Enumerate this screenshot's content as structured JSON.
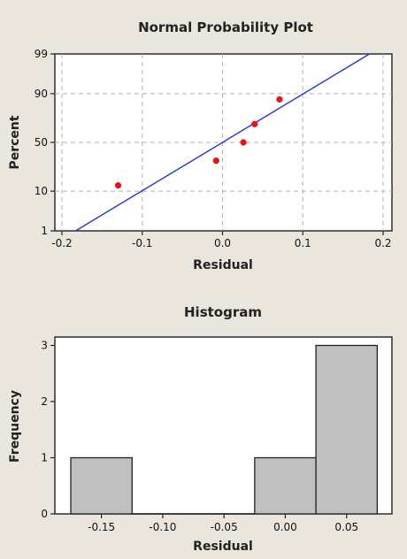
{
  "chart_data": [
    {
      "type": "scatter",
      "title": "Normal Probability Plot",
      "xlabel": "Residual",
      "ylabel": "Percent",
      "x_ticks": [
        "-0.2",
        "-0.1",
        "0.0",
        "0.1",
        "0.2"
      ],
      "y_ticks": [
        "1",
        "10",
        "50",
        "90",
        "99"
      ],
      "xlim": [
        -0.2,
        0.2
      ],
      "ylim_percent": [
        1,
        99
      ],
      "y_scale": "normal-probability",
      "grid": true,
      "fit_line": {
        "x": [
          -0.183,
          0.183
        ],
        "percent": [
          1,
          99
        ],
        "color": "#2233dd"
      },
      "series": [
        {
          "color": "#ee1111",
          "points": [
            {
              "x": -0.13,
              "percent": 12.9
            },
            {
              "x": -0.008,
              "percent": 31.5
            },
            {
              "x": 0.026,
              "percent": 50.0
            },
            {
              "x": 0.04,
              "percent": 68.5
            },
            {
              "x": 0.071,
              "percent": 87.1
            }
          ]
        }
      ]
    },
    {
      "type": "bar",
      "title": "Histogram",
      "xlabel": "Residual",
      "ylabel": "Frequency",
      "x_ticks": [
        "-0.15",
        "-0.10",
        "-0.05",
        "0.00",
        "0.05"
      ],
      "y_ticks": [
        "0",
        "1",
        "2",
        "3"
      ],
      "xlim": [
        -0.188,
        0.087
      ],
      "ylim": [
        0,
        3.15
      ],
      "bin_width": 0.05,
      "bar_color": "#c0c0c0",
      "bins": [
        {
          "center": -0.15,
          "value": 1
        },
        {
          "center": -0.1,
          "value": 0
        },
        {
          "center": -0.05,
          "value": 0
        },
        {
          "center": 0.0,
          "value": 1
        },
        {
          "center": 0.05,
          "value": 3
        }
      ]
    }
  ]
}
